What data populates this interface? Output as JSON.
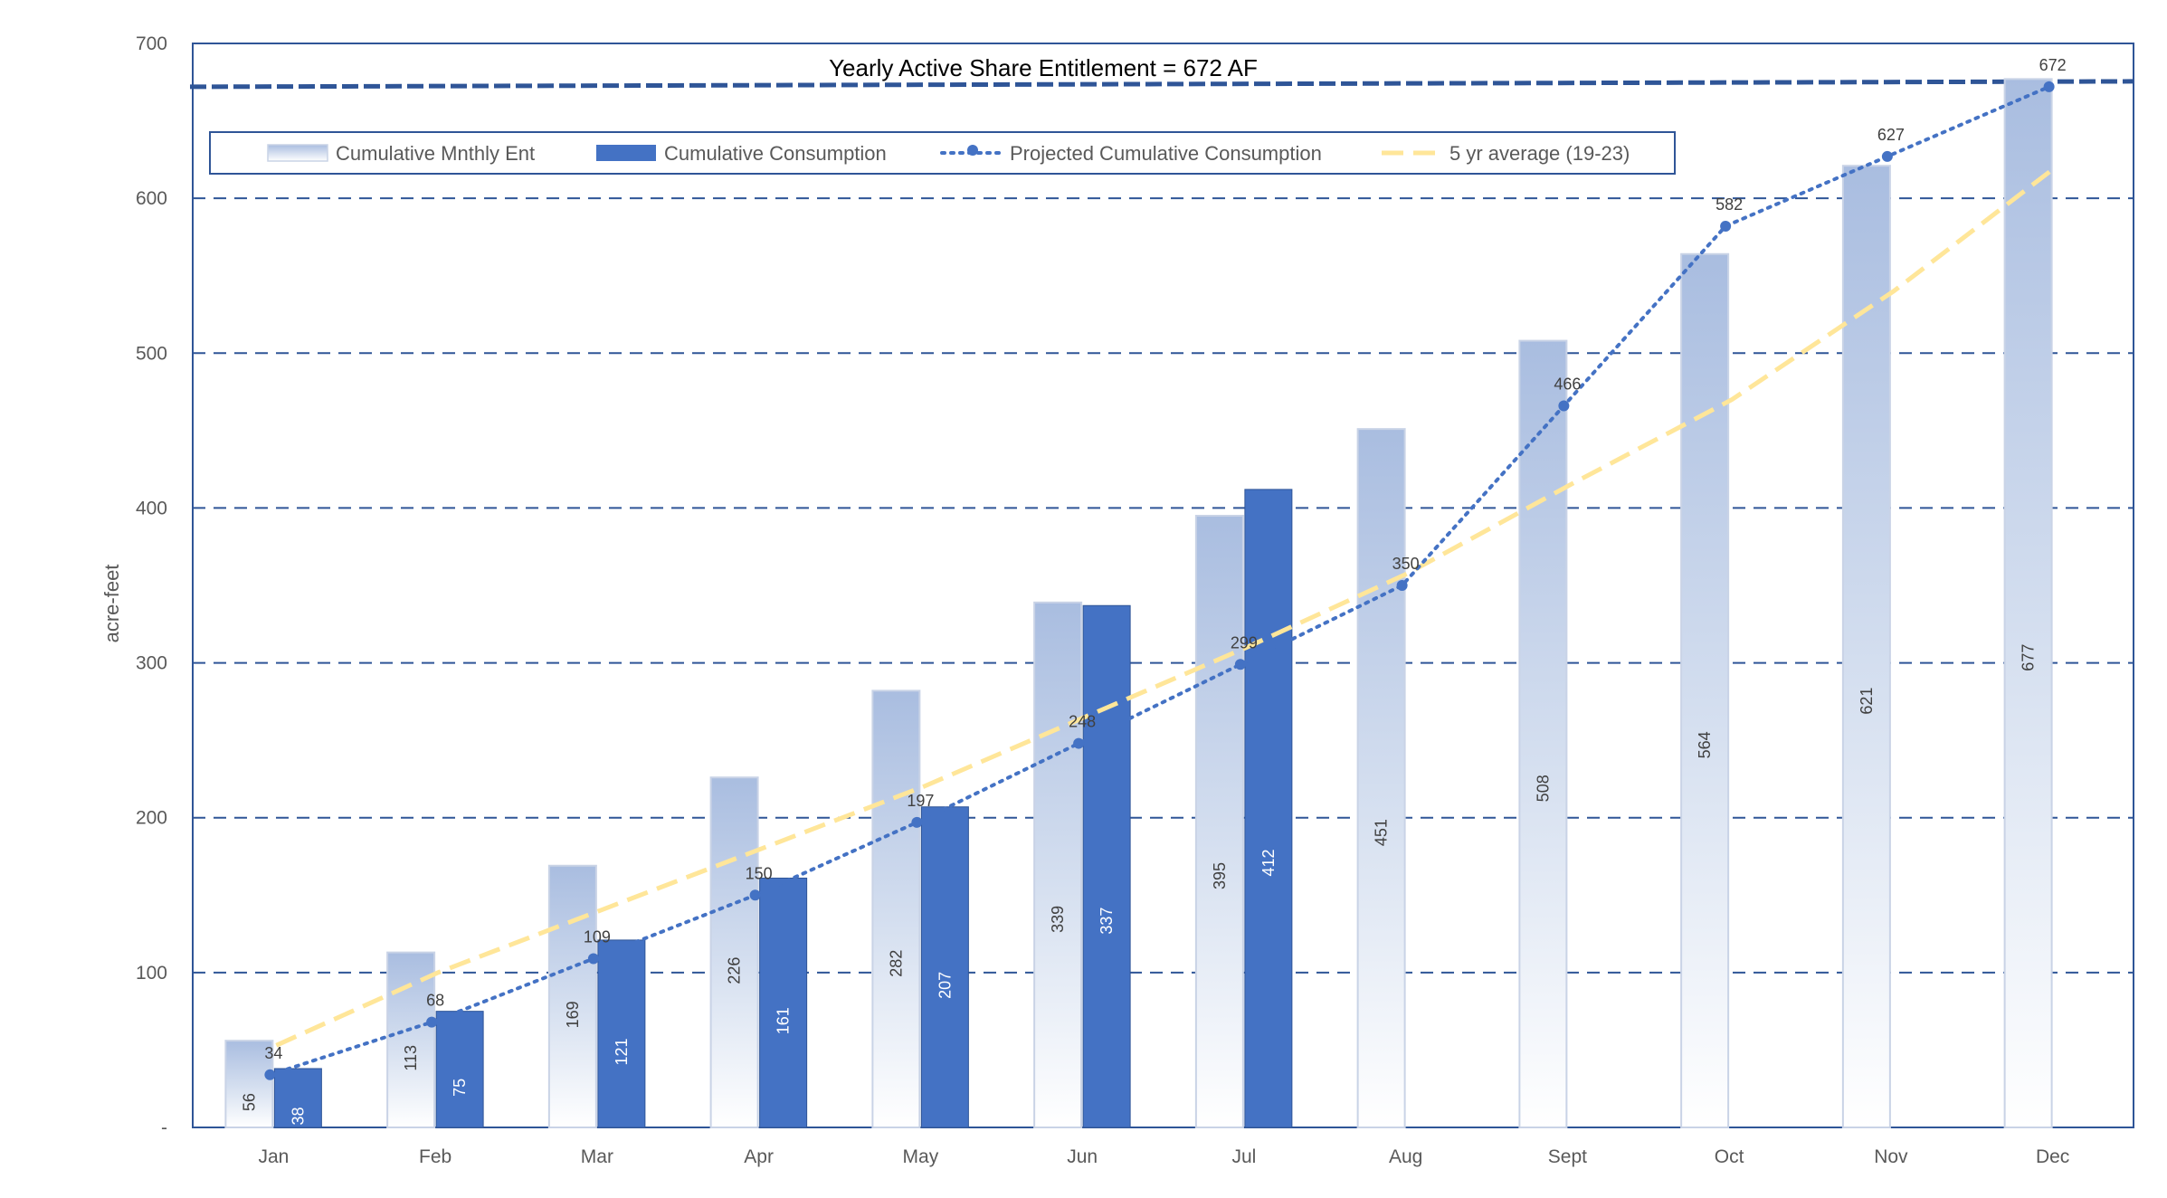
{
  "chart_data": {
    "type": "bar",
    "title": "",
    "annotation": "Yearly Active Share Entitlement = 672 AF",
    "entitlement_line": 672,
    "ylabel": "acre-feet",
    "xlabel": "",
    "ylim": [
      0,
      700
    ],
    "y_ticks": [
      "-",
      "100",
      "200",
      "300",
      "400",
      "500",
      "600",
      "700"
    ],
    "y_tick_values": [
      0,
      100,
      200,
      300,
      400,
      500,
      600,
      700
    ],
    "grid": true,
    "legend_position": "top",
    "categories": [
      "Jan",
      "Feb",
      "Mar",
      "Apr",
      "May",
      "Jun",
      "Jul",
      "Aug",
      "Sept",
      "Oct",
      "Nov",
      "Dec"
    ],
    "series": [
      {
        "name": "Cumulative Mnthly Ent",
        "type": "bar",
        "color": "#a9bde0",
        "values": [
          56,
          113,
          169,
          226,
          282,
          339,
          395,
          451,
          508,
          564,
          621,
          677
        ]
      },
      {
        "name": "Cumulative Consumption",
        "type": "bar",
        "color": "#4472c4",
        "values": [
          38,
          75,
          121,
          161,
          207,
          337,
          412,
          null,
          null,
          null,
          null,
          null
        ]
      },
      {
        "name": "Projected Cumulative Consumption",
        "type": "line",
        "style": "dotted",
        "color": "#4472c4",
        "values": [
          34,
          68,
          109,
          150,
          197,
          248,
          299,
          350,
          466,
          582,
          627,
          672
        ]
      },
      {
        "name": "5 yr average (19-23)",
        "type": "line",
        "style": "dashed",
        "color": "#ffe699",
        "values": [
          53,
          100,
          140,
          180,
          220,
          265,
          310,
          358,
          415,
          470,
          540,
          620
        ]
      }
    ]
  }
}
